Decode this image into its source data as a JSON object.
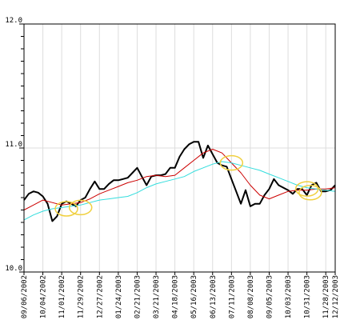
{
  "chart_data": {
    "type": "line",
    "title": "",
    "xlabel": "",
    "ylabel": "",
    "grid": true,
    "ylim": [
      10.0,
      12.0
    ],
    "yticks": [
      10.0,
      11.0,
      12.0
    ],
    "ytick_labels": [
      "10.0",
      "11.0",
      "12.0"
    ],
    "xlim": [
      "2002-09-06",
      "2003-12-12"
    ],
    "xtick_labels": [
      "09/06/2002",
      "10/04/2002",
      "11/01/2002",
      "11/29/2002",
      "12/27/2002",
      "01/24/2003",
      "02/21/2003",
      "03/21/2003",
      "04/18/2003",
      "05/16/2003",
      "06/13/2003",
      "07/11/2003",
      "08/08/2003",
      "09/05/2003",
      "10/03/2003",
      "10/31/2003",
      "11/28/2003",
      "12/12/2003"
    ],
    "xtick_dates": [
      "2002-09-06",
      "2002-10-04",
      "2002-11-01",
      "2002-11-29",
      "2002-12-27",
      "2003-01-24",
      "2003-02-21",
      "2003-03-21",
      "2003-04-18",
      "2003-05-16",
      "2003-06-13",
      "2003-07-11",
      "2003-08-08",
      "2003-09-05",
      "2003-10-03",
      "2003-10-31",
      "2003-11-28",
      "2003-12-12"
    ],
    "series": [
      {
        "color": "#000000",
        "x": [
          "2002-09-06",
          "2002-09-13",
          "2002-09-20",
          "2002-09-27",
          "2002-10-04",
          "2002-10-11",
          "2002-10-18",
          "2002-10-25",
          "2002-11-01",
          "2002-11-08",
          "2002-11-15",
          "2002-11-22",
          "2002-11-29",
          "2002-12-06",
          "2002-12-13",
          "2002-12-20",
          "2002-12-27",
          "2003-01-03",
          "2003-01-10",
          "2003-01-17",
          "2003-01-24",
          "2003-01-31",
          "2003-02-07",
          "2003-02-14",
          "2003-02-21",
          "2003-02-28",
          "2003-03-07",
          "2003-03-14",
          "2003-03-21",
          "2003-03-28",
          "2003-04-04",
          "2003-04-11",
          "2003-04-18",
          "2003-04-25",
          "2003-05-02",
          "2003-05-09",
          "2003-05-16",
          "2003-05-23",
          "2003-05-30",
          "2003-06-06",
          "2003-06-13",
          "2003-06-20",
          "2003-06-27",
          "2003-07-04",
          "2003-07-11",
          "2003-07-18",
          "2003-07-25",
          "2003-08-01",
          "2003-08-08",
          "2003-08-15",
          "2003-08-22",
          "2003-08-29",
          "2003-09-05",
          "2003-09-12",
          "2003-09-19",
          "2003-09-26",
          "2003-10-03",
          "2003-10-10",
          "2003-10-17",
          "2003-10-24",
          "2003-10-31",
          "2003-11-07",
          "2003-11-14",
          "2003-11-21",
          "2003-11-28",
          "2003-12-05",
          "2003-12-12"
        ],
        "values": [
          10.58,
          10.63,
          10.65,
          10.64,
          10.61,
          10.55,
          10.41,
          10.45,
          10.55,
          10.57,
          10.55,
          10.53,
          10.58,
          10.6,
          10.67,
          10.73,
          10.67,
          10.67,
          10.71,
          10.74,
          10.74,
          10.75,
          10.76,
          10.8,
          10.84,
          10.77,
          10.7,
          10.77,
          10.78,
          10.78,
          10.79,
          10.84,
          10.84,
          10.93,
          10.99,
          11.03,
          11.05,
          11.05,
          10.92,
          11.02,
          10.95,
          10.88,
          10.86,
          10.85,
          10.75,
          10.65,
          10.55,
          10.66,
          10.53,
          10.55,
          10.55,
          10.62,
          10.67,
          10.75,
          10.7,
          10.68,
          10.66,
          10.63,
          10.67,
          10.67,
          10.62,
          10.7,
          10.72,
          10.65,
          10.65,
          10.66,
          10.7
        ]
      },
      {
        "color": "#cc0000",
        "x": [
          "2002-09-06",
          "2002-09-20",
          "2002-10-04",
          "2002-10-18",
          "2002-11-01",
          "2002-11-15",
          "2002-11-29",
          "2002-12-13",
          "2002-12-27",
          "2003-01-10",
          "2003-01-24",
          "2003-02-07",
          "2003-02-21",
          "2003-03-07",
          "2003-03-21",
          "2003-04-04",
          "2003-04-18",
          "2003-05-02",
          "2003-05-16",
          "2003-05-30",
          "2003-06-13",
          "2003-06-27",
          "2003-07-11",
          "2003-07-25",
          "2003-08-08",
          "2003-08-22",
          "2003-09-05",
          "2003-09-19",
          "2003-10-03",
          "2003-10-17",
          "2003-10-31",
          "2003-11-14",
          "2003-11-28",
          "2003-12-12"
        ],
        "values": [
          10.5,
          10.54,
          10.58,
          10.56,
          10.54,
          10.55,
          10.56,
          10.59,
          10.63,
          10.66,
          10.69,
          10.72,
          10.74,
          10.77,
          10.78,
          10.77,
          10.78,
          10.84,
          10.9,
          10.96,
          10.99,
          10.96,
          10.88,
          10.8,
          10.7,
          10.62,
          10.59,
          10.62,
          10.65,
          10.66,
          10.66,
          10.67,
          10.67,
          10.68
        ]
      },
      {
        "color": "#33dddd",
        "x": [
          "2002-09-06",
          "2002-09-20",
          "2002-10-04",
          "2002-10-18",
          "2002-11-01",
          "2002-11-15",
          "2002-11-29",
          "2002-12-13",
          "2002-12-27",
          "2003-01-10",
          "2003-01-24",
          "2003-02-07",
          "2003-02-21",
          "2003-03-07",
          "2003-03-21",
          "2003-04-04",
          "2003-04-18",
          "2003-05-02",
          "2003-05-16",
          "2003-05-30",
          "2003-06-13",
          "2003-06-27",
          "2003-07-11",
          "2003-07-25",
          "2003-08-08",
          "2003-08-22",
          "2003-09-05",
          "2003-09-19",
          "2003-10-03",
          "2003-10-17",
          "2003-10-31",
          "2003-11-14",
          "2003-11-28",
          "2003-12-12"
        ],
        "values": [
          10.42,
          10.46,
          10.49,
          10.51,
          10.52,
          10.53,
          10.54,
          10.56,
          10.58,
          10.59,
          10.6,
          10.61,
          10.64,
          10.68,
          10.71,
          10.73,
          10.75,
          10.77,
          10.81,
          10.84,
          10.87,
          10.89,
          10.88,
          10.86,
          10.84,
          10.82,
          10.79,
          10.76,
          10.73,
          10.7,
          10.68,
          10.67,
          10.66,
          10.65
        ]
      }
    ],
    "annotations": [
      {
        "shape": "ellipse",
        "color": "#f0d040",
        "x": "2002-11-08",
        "y": 10.51
      },
      {
        "shape": "ellipse",
        "color": "#f0d040",
        "x": "2002-11-29",
        "y": 10.52
      },
      {
        "shape": "ellipse",
        "color": "#f0d040",
        "x": "2003-07-11",
        "y": 10.88
      },
      {
        "shape": "ellipse",
        "color": "#f0d040",
        "x": "2003-10-31",
        "y": 10.67
      },
      {
        "shape": "ellipse",
        "color": "#f0d040",
        "x": "2003-11-05",
        "y": 10.64
      }
    ]
  }
}
